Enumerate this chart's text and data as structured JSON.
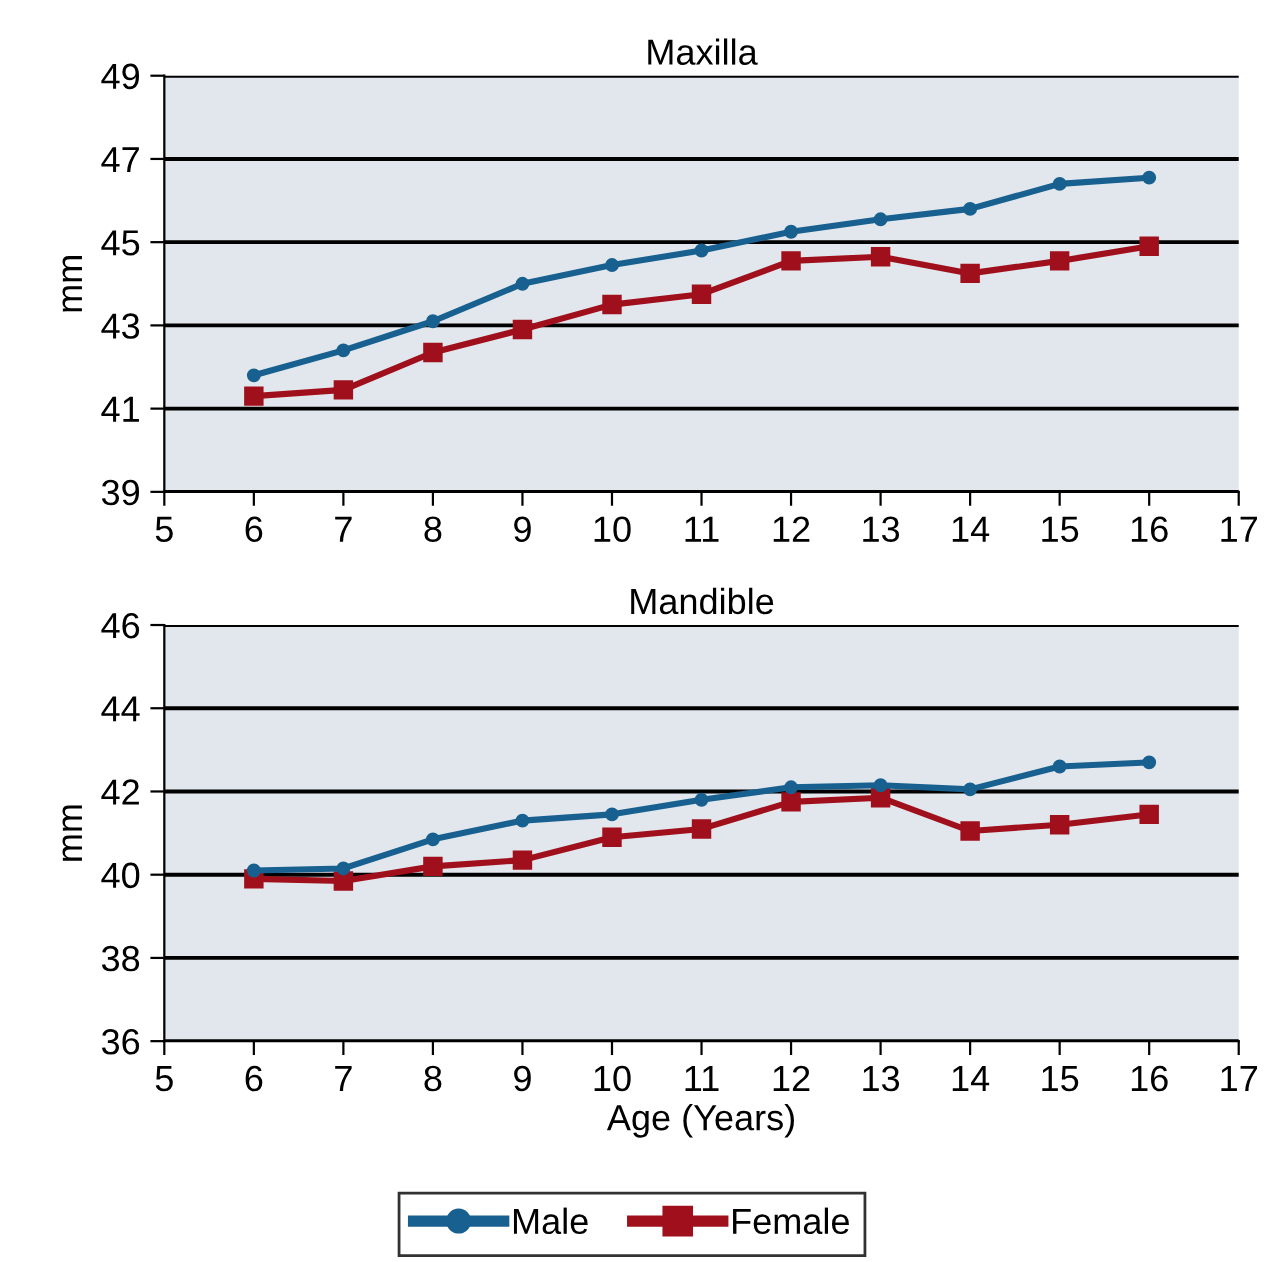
{
  "chart_data": [
    {
      "type": "line",
      "title": "Maxilla",
      "ylabel": "mm",
      "x": [
        6,
        7,
        8,
        9,
        10,
        11,
        12,
        13,
        14,
        15,
        16
      ],
      "xlim": [
        5,
        17
      ],
      "xticks": [
        5,
        6,
        7,
        8,
        9,
        10,
        11,
        12,
        13,
        14,
        15,
        16,
        17
      ],
      "ylim": [
        39,
        49
      ],
      "yticks": [
        39,
        41,
        43,
        45,
        47,
        49
      ],
      "grid": "y",
      "legend": "bottom",
      "series": [
        {
          "name": "Male",
          "color": "#17608f",
          "marker": "circle",
          "values": [
            41.8,
            42.4,
            43.1,
            44.0,
            44.45,
            44.8,
            45.25,
            45.55,
            45.8,
            46.4,
            46.55
          ]
        },
        {
          "name": "Female",
          "color": "#a0101c",
          "marker": "square",
          "values": [
            41.3,
            41.45,
            42.35,
            42.9,
            43.5,
            43.75,
            44.55,
            44.65,
            44.25,
            44.55,
            44.9
          ]
        }
      ]
    },
    {
      "type": "line",
      "title": "Mandible",
      "ylabel": "mm",
      "xlabel": "Age (Years)",
      "x": [
        6,
        7,
        8,
        9,
        10,
        11,
        12,
        13,
        14,
        15,
        16
      ],
      "xlim": [
        5,
        17
      ],
      "xticks": [
        5,
        6,
        7,
        8,
        9,
        10,
        11,
        12,
        13,
        14,
        15,
        16,
        17
      ],
      "ylim": [
        36,
        46
      ],
      "yticks": [
        36,
        38,
        40,
        42,
        44,
        46
      ],
      "grid": "y",
      "series": [
        {
          "color": "#17608f",
          "marker": "circle",
          "values": [
            40.1,
            40.15,
            40.85,
            41.3,
            41.45,
            41.8,
            42.1,
            42.15,
            42.05,
            42.6,
            42.7
          ]
        },
        {
          "color": "#a0101c",
          "marker": "square",
          "values": [
            39.9,
            39.85,
            40.2,
            40.35,
            40.9,
            41.1,
            41.75,
            41.85,
            41.05,
            41.2,
            41.45
          ]
        }
      ]
    }
  ]
}
